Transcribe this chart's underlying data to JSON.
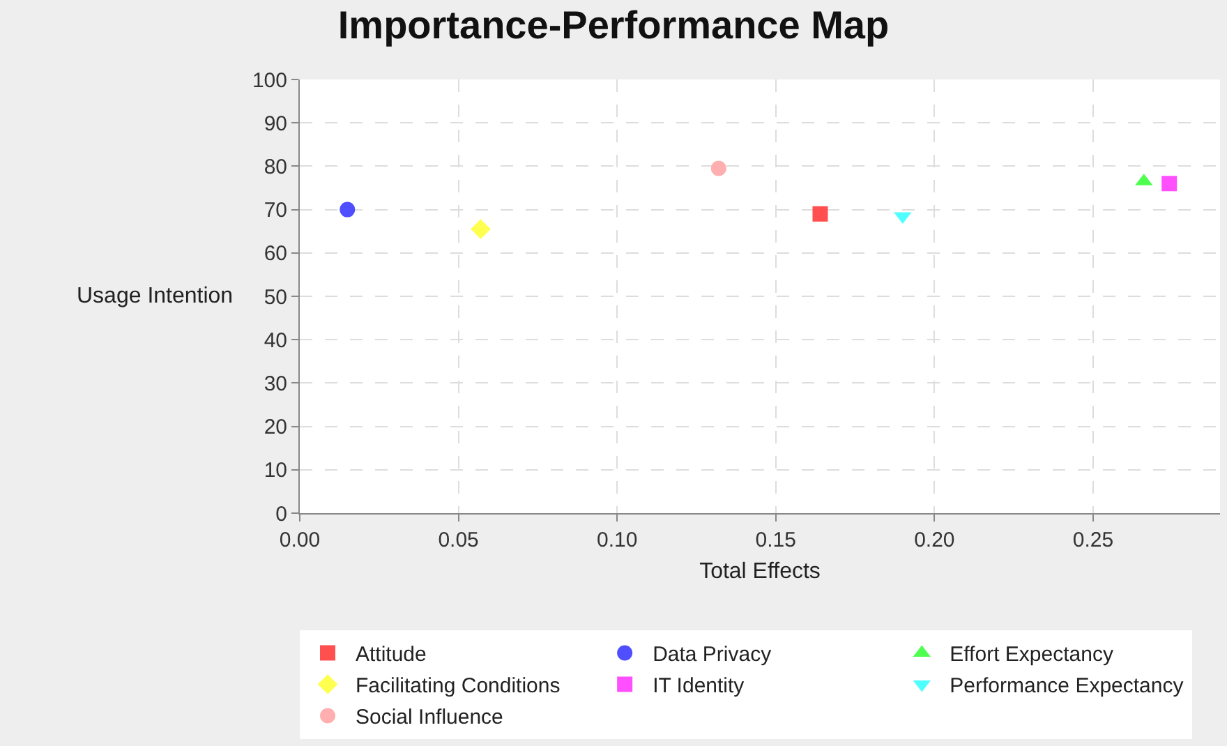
{
  "chart_data": {
    "type": "scatter",
    "title": "Importance-Performance Map",
    "xlabel": "Total Effects",
    "ylabel": "Usage Intention",
    "xlim": [
      0,
      0.29
    ],
    "xticks": [
      {
        "value": 0,
        "label": "0.00"
      },
      {
        "value": 0.05,
        "label": "0.05"
      },
      {
        "value": 0.1,
        "label": "0.10"
      },
      {
        "value": 0.15,
        "label": "0.15"
      },
      {
        "value": 0.2,
        "label": "0.20"
      },
      {
        "value": 0.25,
        "label": "0.25"
      }
    ],
    "ylim": [
      0,
      100
    ],
    "yticks": [
      0,
      10,
      20,
      30,
      40,
      50,
      60,
      70,
      80,
      90,
      100
    ],
    "grid": true,
    "legend": "bottom",
    "series": [
      {
        "name": "Attitude",
        "color": "#ff4f4f",
        "marker": "square",
        "x": [
          0.164
        ],
        "values": [
          69
        ]
      },
      {
        "name": "Data Privacy",
        "color": "#4f4fff",
        "marker": "circle",
        "x": [
          0.015
        ],
        "values": [
          70
        ]
      },
      {
        "name": "Effort Expectancy",
        "color": "#4fff4f",
        "marker": "triangle",
        "x": [
          0.266
        ],
        "values": [
          76.5
        ]
      },
      {
        "name": "Facilitating Conditions",
        "color": "#ffff4f",
        "marker": "diamond",
        "x": [
          0.057
        ],
        "values": [
          65.5
        ]
      },
      {
        "name": "IT Identity",
        "color": "#ff4fff",
        "marker": "square",
        "x": [
          0.274
        ],
        "values": [
          76
        ]
      },
      {
        "name": "Performance Expectancy",
        "color": "#4fffff",
        "marker": "triangle-down",
        "x": [
          0.19
        ],
        "values": [
          68.5
        ]
      },
      {
        "name": "Social Influence",
        "color": "#ffafaf",
        "marker": "circle",
        "x": [
          0.132
        ],
        "values": [
          79.5
        ]
      }
    ]
  }
}
